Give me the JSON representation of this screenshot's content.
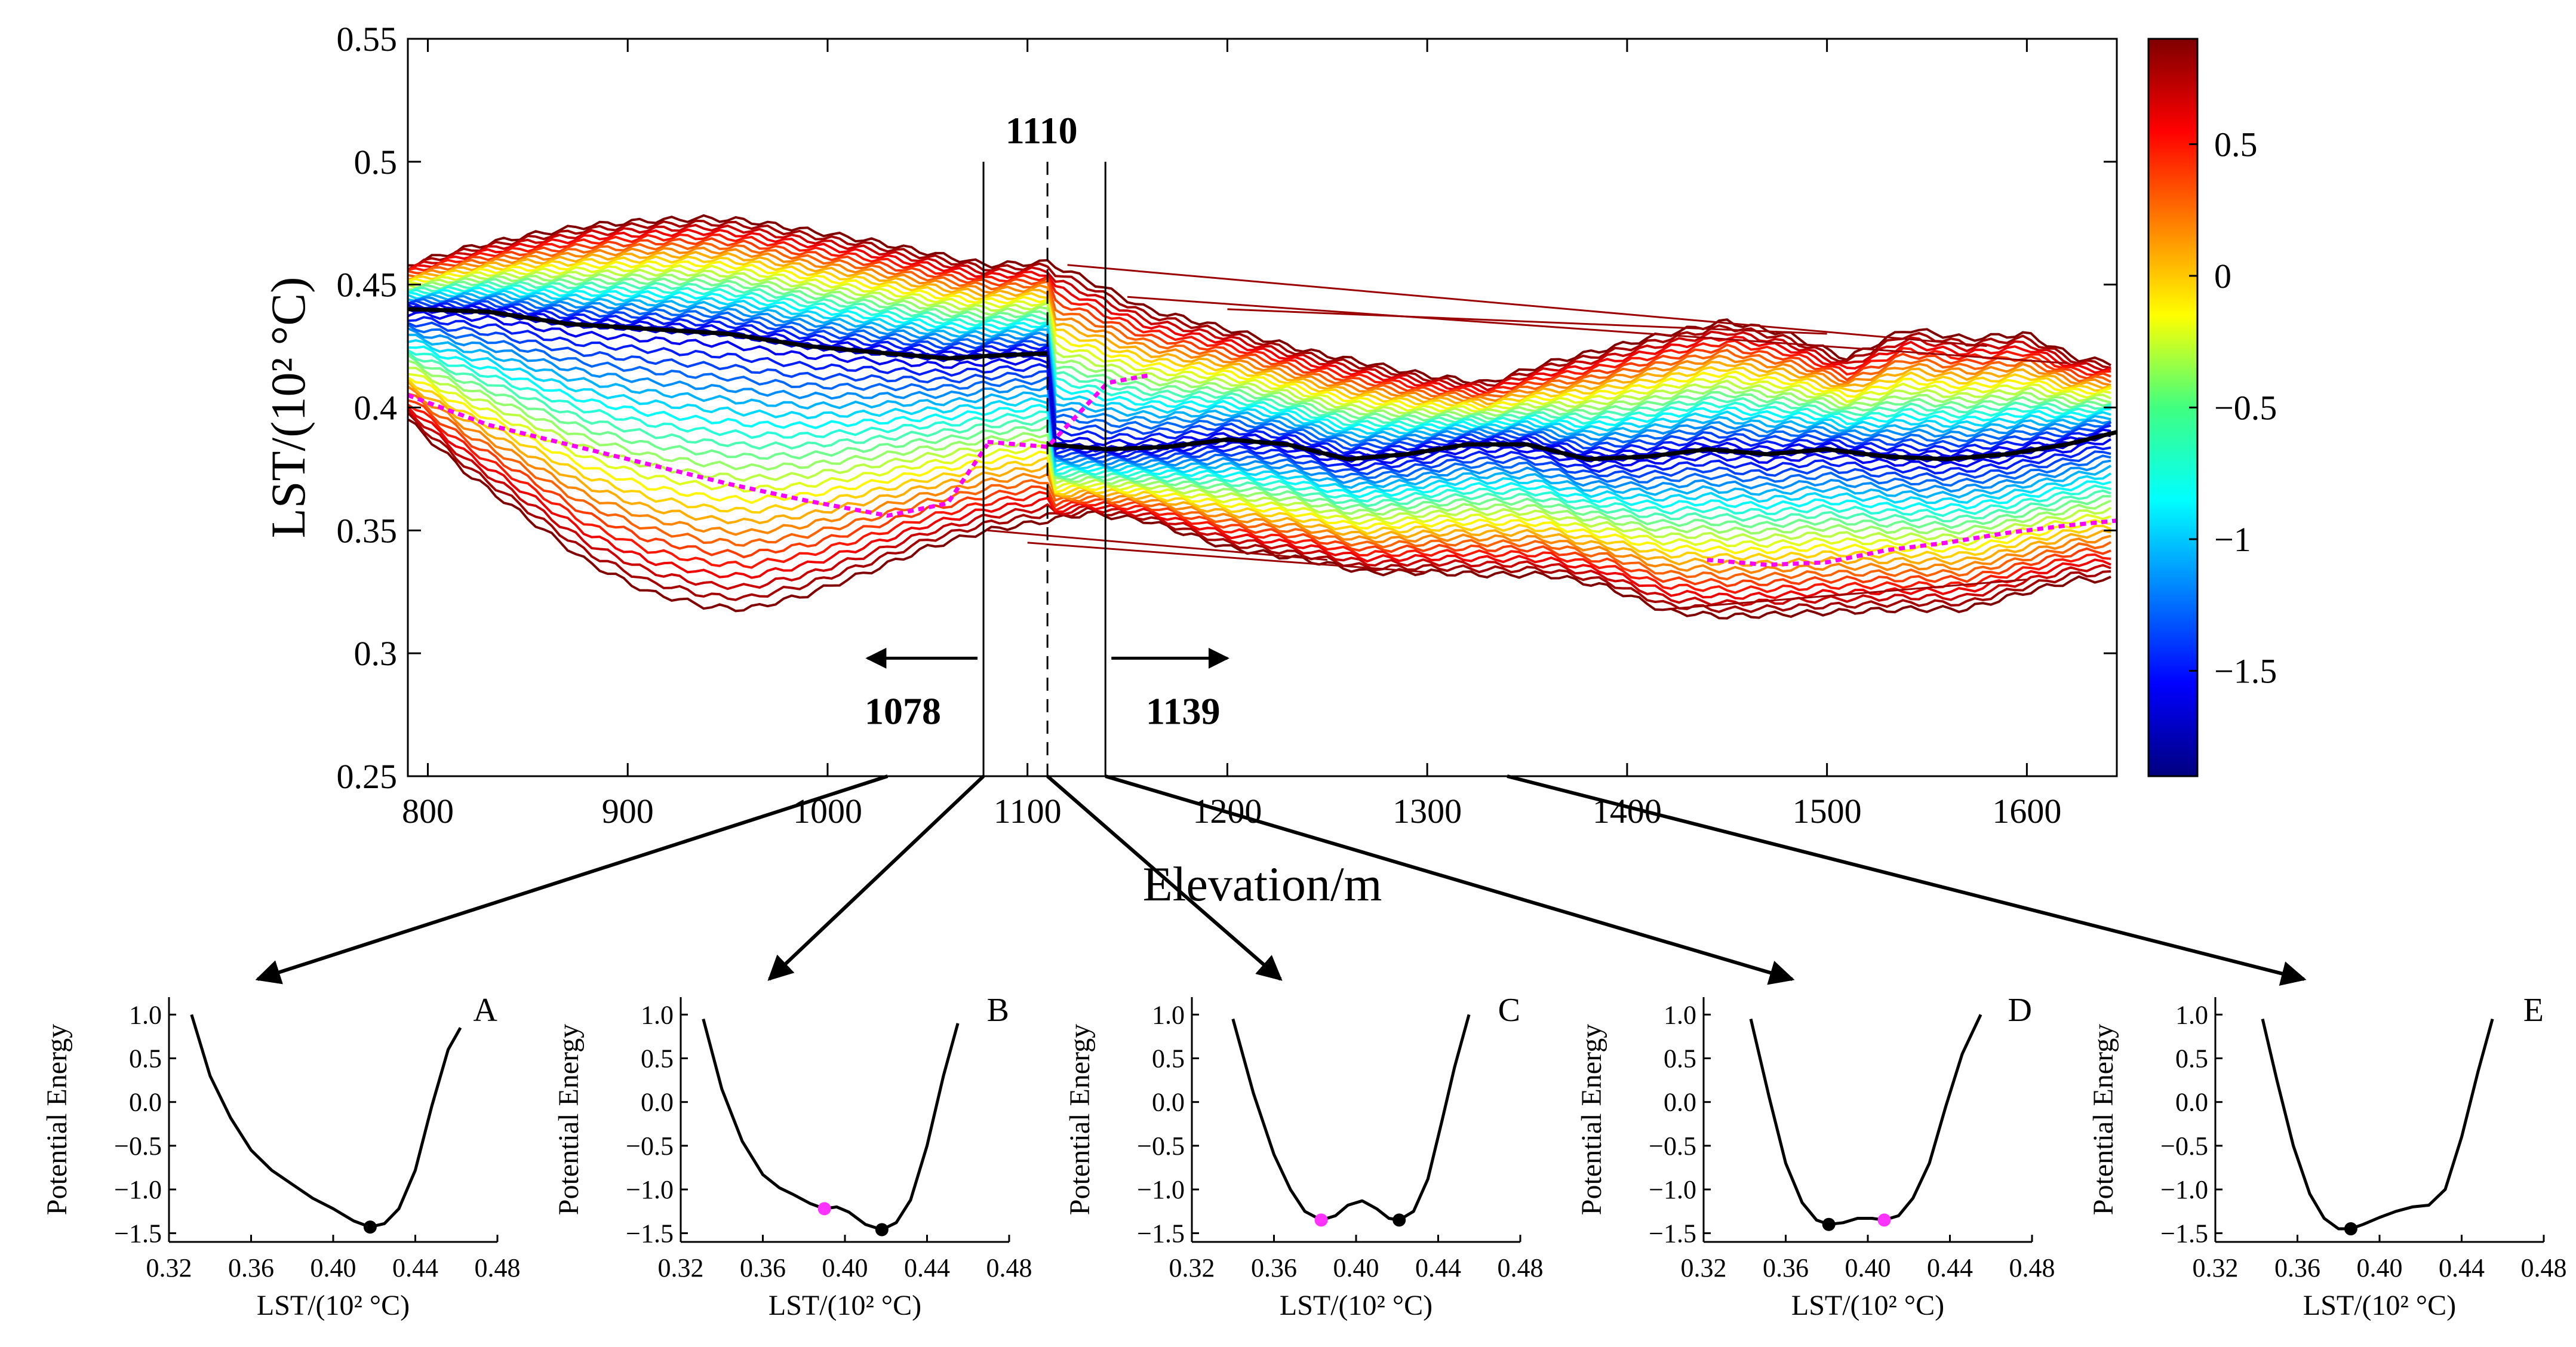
{
  "chart_data": {
    "main": {
      "type": "line",
      "title": "",
      "xlabel": "Elevation/m",
      "ylabel": "LST/(10² °C)",
      "xlim": [
        790,
        1645
      ],
      "ylim": [
        0.25,
        0.55
      ],
      "xticks": [
        800,
        900,
        1000,
        1100,
        1200,
        1300,
        1400,
        1500,
        1600
      ],
      "yticks": [
        0.25,
        0.3,
        0.35,
        0.4,
        0.45,
        0.5,
        0.55
      ],
      "ytick_labels": [
        "0.25",
        "0.3",
        "0.35",
        "0.4",
        "0.45",
        "0.5",
        "0.55"
      ],
      "band": {
        "x": [
          790,
          820,
          850,
          880,
          910,
          940,
          960,
          990,
          1020,
          1050,
          1080,
          1110,
          1130,
          1160,
          1200,
          1240,
          1270,
          1300,
          1330,
          1360,
          1390,
          1420,
          1450,
          1480,
          1510,
          1540,
          1570,
          1600,
          1625,
          1645
        ],
        "upper": [
          0.458,
          0.465,
          0.47,
          0.474,
          0.476,
          0.477,
          0.476,
          0.472,
          0.468,
          0.463,
          0.458,
          0.459,
          0.452,
          0.44,
          0.432,
          0.423,
          0.418,
          0.413,
          0.41,
          0.418,
          0.424,
          0.43,
          0.435,
          0.43,
          0.42,
          0.432,
          0.428,
          0.43,
          0.42,
          0.418
        ],
        "lower": [
          0.395,
          0.373,
          0.355,
          0.337,
          0.325,
          0.319,
          0.318,
          0.324,
          0.333,
          0.343,
          0.35,
          0.354,
          0.357,
          0.354,
          0.343,
          0.338,
          0.333,
          0.333,
          0.332,
          0.332,
          0.327,
          0.317,
          0.315,
          0.316,
          0.317,
          0.318,
          0.318,
          0.325,
          0.33,
          0.33
        ]
      },
      "stable_curves": [
        {
          "x": [
            790,
            830,
            870,
            910,
            950,
            990,
            1030,
            1060,
            1080,
            1110
          ],
          "y": [
            0.44,
            0.439,
            0.434,
            0.432,
            0.43,
            0.425,
            0.422,
            0.42,
            0.421,
            0.422
          ]
        },
        {
          "x": [
            1110,
            1140,
            1170,
            1200,
            1230,
            1260,
            1290,
            1320,
            1350,
            1380,
            1410,
            1440,
            1470,
            1500,
            1530,
            1560,
            1590,
            1620,
            1645
          ],
          "y": [
            0.385,
            0.383,
            0.384,
            0.387,
            0.385,
            0.379,
            0.381,
            0.385,
            0.385,
            0.379,
            0.38,
            0.383,
            0.381,
            0.383,
            0.38,
            0.379,
            0.381,
            0.385,
            0.39
          ]
        }
      ],
      "unstable_curves": [
        {
          "x": [
            790,
            830,
            870,
            910,
            950,
            990,
            1030,
            1060,
            1080
          ],
          "y": [
            0.405,
            0.393,
            0.385,
            0.377,
            0.369,
            0.362,
            0.356,
            0.361,
            0.385
          ]
        },
        {
          "x": [
            1080,
            1110,
            1140,
            1160
          ],
          "y": [
            0.386,
            0.384,
            0.41,
            0.413
          ]
        },
        {
          "x": [
            1440,
            1470,
            1500,
            1530,
            1560,
            1590,
            1620,
            1645
          ],
          "y": [
            0.338,
            0.336,
            0.337,
            0.342,
            0.345,
            0.349,
            0.352,
            0.354
          ]
        }
      ],
      "vertical_lines": [
        {
          "x": 1078,
          "style": "solid",
          "label": "1078"
        },
        {
          "x": 1110,
          "style": "dashed",
          "label": "1110"
        },
        {
          "x": 1139,
          "style": "solid",
          "label": "1139"
        }
      ],
      "colorbar": {
        "min": -1.9,
        "max": 0.9,
        "ticks": [
          0.5,
          0,
          -0.5,
          -1,
          -1.5
        ],
        "tick_labels": [
          "0.5",
          "0",
          "−0.5",
          "−1",
          "−1.5"
        ]
      }
    },
    "panels": [
      {
        "label": "A",
        "source_x": 1030,
        "xlabel": "LST/(10² °C)",
        "ylabel": "Potential Energy",
        "xlim": [
          0.32,
          0.48
        ],
        "ylim": [
          -1.6,
          1.2
        ],
        "xticks": [
          "0.32",
          "0.36",
          "0.40",
          "0.44",
          "0.48"
        ],
        "yticks": [
          "1.0",
          "0.5",
          "0.0",
          "−0.5",
          "−1.0",
          "−1.5"
        ],
        "curve": {
          "x": [
            0.331,
            0.34,
            0.35,
            0.36,
            0.37,
            0.38,
            0.39,
            0.4,
            0.41,
            0.418,
            0.425,
            0.432,
            0.44,
            0.448,
            0.456,
            0.462
          ],
          "y": [
            1.0,
            0.3,
            -0.18,
            -0.55,
            -0.78,
            -0.94,
            -1.1,
            -1.22,
            -1.36,
            -1.43,
            -1.39,
            -1.22,
            -0.78,
            -0.05,
            0.6,
            0.85
          ]
        },
        "stable": [
          {
            "x": 0.418,
            "y": -1.43
          }
        ],
        "unstable": []
      },
      {
        "label": "B",
        "source_x": 1078,
        "xlabel": "LST/(10² °C)",
        "ylabel": "Potential Energy",
        "xlim": [
          0.32,
          0.48
        ],
        "ylim": [
          -1.6,
          1.2
        ],
        "xticks": [
          "0.32",
          "0.36",
          "0.40",
          "0.44",
          "0.48"
        ],
        "yticks": [
          "1.0",
          "0.5",
          "0.0",
          "−0.5",
          "−1.0",
          "−1.5"
        ],
        "curve": {
          "x": [
            0.331,
            0.34,
            0.35,
            0.36,
            0.368,
            0.375,
            0.383,
            0.39,
            0.396,
            0.402,
            0.41,
            0.418,
            0.425,
            0.432,
            0.44,
            0.448,
            0.455
          ],
          "y": [
            0.95,
            0.15,
            -0.45,
            -0.83,
            -0.98,
            -1.06,
            -1.16,
            -1.22,
            -1.2,
            -1.26,
            -1.4,
            -1.46,
            -1.38,
            -1.12,
            -0.5,
            0.3,
            0.9
          ]
        },
        "stable": [
          {
            "x": 0.418,
            "y": -1.46
          }
        ],
        "unstable": [
          {
            "x": 0.39,
            "y": -1.22
          }
        ]
      },
      {
        "label": "C",
        "source_x": 1110,
        "xlabel": "LST/(10² °C)",
        "ylabel": "Potential Energy",
        "xlim": [
          0.32,
          0.48
        ],
        "ylim": [
          -1.6,
          1.2
        ],
        "xticks": [
          "0.32",
          "0.36",
          "0.40",
          "0.44",
          "0.48"
        ],
        "yticks": [
          "1.0",
          "0.5",
          "0.0",
          "−0.5",
          "−1.0",
          "−1.5"
        ],
        "curve": {
          "x": [
            0.34,
            0.35,
            0.36,
            0.368,
            0.375,
            0.383,
            0.39,
            0.396,
            0.403,
            0.41,
            0.416,
            0.421,
            0.428,
            0.435,
            0.442,
            0.448,
            0.455
          ],
          "y": [
            0.95,
            0.1,
            -0.6,
            -1.0,
            -1.25,
            -1.35,
            -1.3,
            -1.18,
            -1.13,
            -1.22,
            -1.33,
            -1.35,
            -1.25,
            -0.88,
            -0.2,
            0.4,
            1.0
          ]
        },
        "stable": [
          {
            "x": 0.421,
            "y": -1.35
          }
        ],
        "unstable": [
          {
            "x": 0.383,
            "y": -1.35
          }
        ]
      },
      {
        "label": "D",
        "source_x": 1139,
        "xlabel": "LST/(10² °C)",
        "ylabel": "Potential Energy",
        "xlim": [
          0.32,
          0.48
        ],
        "ylim": [
          -1.6,
          1.2
        ],
        "xticks": [
          "0.32",
          "0.36",
          "0.40",
          "0.44",
          "0.48"
        ],
        "yticks": [
          "1.0",
          "0.5",
          "0.0",
          "−0.5",
          "−1.0",
          "−1.5"
        ],
        "curve": {
          "x": [
            0.343,
            0.352,
            0.36,
            0.368,
            0.375,
            0.381,
            0.388,
            0.395,
            0.402,
            0.408,
            0.415,
            0.422,
            0.43,
            0.438,
            0.446,
            0.455
          ],
          "y": [
            0.95,
            0.05,
            -0.7,
            -1.15,
            -1.35,
            -1.4,
            -1.38,
            -1.33,
            -1.33,
            -1.35,
            -1.3,
            -1.1,
            -0.7,
            -0.05,
            0.55,
            1.0
          ]
        },
        "stable": [
          {
            "x": 0.381,
            "y": -1.4
          }
        ],
        "unstable": [
          {
            "x": 0.408,
            "y": -1.35
          }
        ]
      },
      {
        "label": "E",
        "source_x": 1340,
        "xlabel": "LST/(10² °C)",
        "ylabel": "Potential Energy",
        "xlim": [
          0.32,
          0.48
        ],
        "ylim": [
          -1.6,
          1.2
        ],
        "xticks": [
          "0.32",
          "0.36",
          "0.40",
          "0.44",
          "0.48"
        ],
        "yticks": [
          "1.0",
          "0.5",
          "0.0",
          "−0.5",
          "−1.0",
          "−1.5"
        ],
        "curve": {
          "x": [
            0.343,
            0.35,
            0.358,
            0.366,
            0.373,
            0.38,
            0.386,
            0.392,
            0.4,
            0.408,
            0.416,
            0.424,
            0.432,
            0.44,
            0.448,
            0.455
          ],
          "y": [
            0.95,
            0.25,
            -0.5,
            -1.05,
            -1.33,
            -1.45,
            -1.45,
            -1.4,
            -1.32,
            -1.25,
            -1.2,
            -1.18,
            -1.0,
            -0.4,
            0.35,
            0.95
          ]
        },
        "stable": [
          {
            "x": 0.386,
            "y": -1.45
          }
        ],
        "unstable": []
      }
    ]
  }
}
